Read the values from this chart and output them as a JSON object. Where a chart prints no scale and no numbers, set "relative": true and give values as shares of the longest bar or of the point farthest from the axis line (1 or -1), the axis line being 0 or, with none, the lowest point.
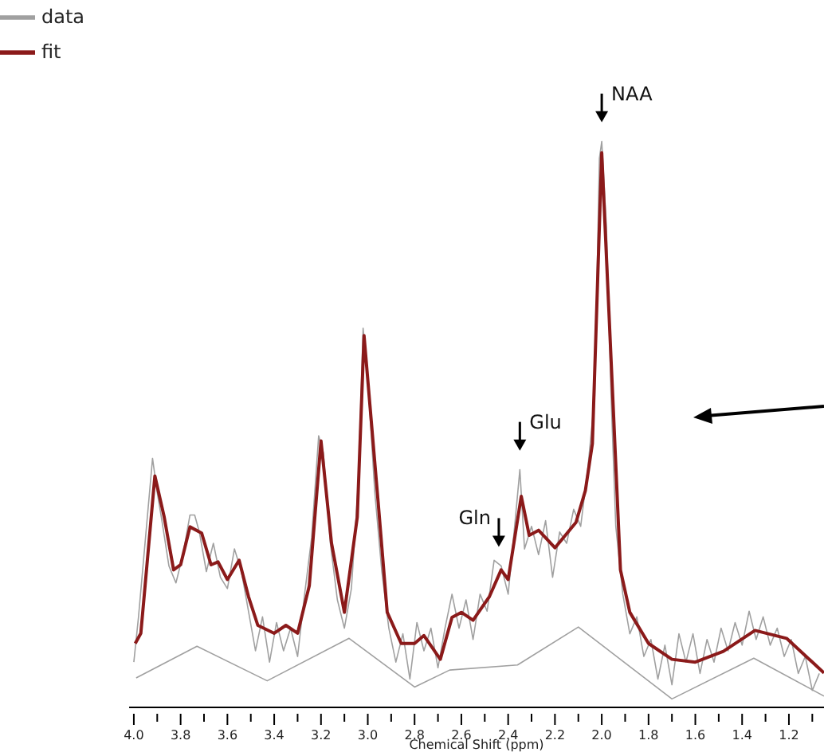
{
  "chart_data": {
    "type": "line",
    "relative": true,
    "xlabel": "Chemical Shift (ppm)",
    "legend": "top left",
    "marker": "none",
    "xlim": [
      4.02,
      1.05
    ],
    "xticks": [
      {
        "value": 4,
        "label": "4.0"
      },
      {
        "value": 3.9,
        "label": null
      },
      3.8,
      {
        "value": 3.7,
        "label": null
      },
      3.6,
      {
        "value": 3.5,
        "label": null
      },
      3.4,
      {
        "value": 3.3,
        "label": null
      },
      3.2,
      {
        "value": 3.1,
        "label": null
      },
      {
        "value": 3,
        "label": "3.0"
      },
      {
        "value": 2.9,
        "label": null
      },
      2.8,
      {
        "value": 2.7,
        "label": null
      },
      2.6,
      {
        "value": 2.5,
        "label": null
      },
      2.4,
      {
        "value": 2.3,
        "label": null
      },
      2.2,
      {
        "value": 2.1,
        "label": null
      },
      {
        "value": 2,
        "label": "2.0"
      },
      {
        "value": 1.9,
        "label": null
      },
      1.8,
      {
        "value": 1.7,
        "label": null
      },
      1.6,
      {
        "value": 1.5,
        "label": null
      },
      1.4,
      {
        "value": 1.3,
        "label": null
      },
      1.2,
      {
        "value": 1.1,
        "label": null
      }
    ],
    "series": [
      {
        "name": "data",
        "color": "#a0a0a0",
        "x": [
          4.0,
          3.98,
          3.95,
          3.92,
          3.9,
          3.88,
          3.85,
          3.82,
          3.79,
          3.76,
          3.74,
          3.72,
          3.69,
          3.66,
          3.63,
          3.6,
          3.57,
          3.54,
          3.51,
          3.48,
          3.45,
          3.42,
          3.39,
          3.36,
          3.33,
          3.3,
          3.27,
          3.24,
          3.21,
          3.19,
          3.16,
          3.13,
          3.1,
          3.07,
          3.04,
          3.02,
          3.0,
          2.97,
          2.94,
          2.91,
          2.88,
          2.85,
          2.82,
          2.79,
          2.76,
          2.73,
          2.7,
          2.67,
          2.64,
          2.61,
          2.58,
          2.55,
          2.52,
          2.49,
          2.46,
          2.43,
          2.4,
          2.37,
          2.35,
          2.33,
          2.3,
          2.27,
          2.24,
          2.21,
          2.18,
          2.15,
          2.12,
          2.09,
          2.06,
          2.03,
          2.01,
          2.0,
          1.98,
          1.96,
          1.94,
          1.91,
          1.88,
          1.85,
          1.82,
          1.79,
          1.76,
          1.73,
          1.7,
          1.67,
          1.64,
          1.61,
          1.58,
          1.55,
          1.52,
          1.49,
          1.46,
          1.43,
          1.4,
          1.37,
          1.34,
          1.31,
          1.28,
          1.25,
          1.22,
          1.19,
          1.16,
          1.13,
          1.1,
          1.07
        ],
        "values": [
          0.08,
          0.16,
          0.3,
          0.44,
          0.38,
          0.33,
          0.25,
          0.22,
          0.27,
          0.34,
          0.34,
          0.31,
          0.24,
          0.29,
          0.23,
          0.21,
          0.28,
          0.24,
          0.17,
          0.1,
          0.16,
          0.08,
          0.15,
          0.1,
          0.14,
          0.09,
          0.2,
          0.3,
          0.48,
          0.45,
          0.29,
          0.19,
          0.14,
          0.21,
          0.4,
          0.67,
          0.58,
          0.38,
          0.24,
          0.14,
          0.08,
          0.13,
          0.05,
          0.15,
          0.1,
          0.14,
          0.07,
          0.14,
          0.2,
          0.14,
          0.19,
          0.12,
          0.2,
          0.17,
          0.26,
          0.25,
          0.2,
          0.33,
          0.42,
          0.28,
          0.32,
          0.27,
          0.33,
          0.23,
          0.31,
          0.29,
          0.35,
          0.32,
          0.42,
          0.55,
          0.97,
          1.0,
          0.85,
          0.55,
          0.32,
          0.2,
          0.13,
          0.16,
          0.09,
          0.12,
          0.05,
          0.11,
          0.04,
          0.13,
          0.08,
          0.13,
          0.06,
          0.12,
          0.08,
          0.14,
          0.1,
          0.15,
          0.11,
          0.17,
          0.12,
          0.16,
          0.11,
          0.14,
          0.09,
          0.12,
          0.06,
          0.09,
          0.03,
          0.06
        ]
      },
      {
        "color": "#a0a0a0",
        "x": [
          3.99,
          3.73,
          3.43,
          3.08,
          2.8,
          2.65,
          2.36,
          2.1,
          1.7,
          1.35,
          1.05
        ],
        "values": [
          0.052,
          0.108,
          0.047,
          0.122,
          0.036,
          0.066,
          0.075,
          0.142,
          0.015,
          0.087,
          0.02
        ]
      },
      {
        "name": "fit",
        "color": "#8b1a1a",
        "x": [
          3.994,
          3.97,
          3.91,
          3.87,
          3.83,
          3.8,
          3.76,
          3.71,
          3.67,
          3.64,
          3.6,
          3.55,
          3.51,
          3.47,
          3.4,
          3.35,
          3.3,
          3.25,
          3.2,
          3.155,
          3.1,
          3.045,
          3.016,
          2.956,
          2.917,
          2.857,
          2.8,
          2.76,
          2.69,
          2.64,
          2.6,
          2.55,
          2.48,
          2.43,
          2.4,
          2.344,
          2.31,
          2.27,
          2.2,
          2.11,
          2.07,
          2.04,
          2.0,
          1.95,
          1.92,
          1.88,
          1.8,
          1.7,
          1.6,
          1.48,
          1.345,
          1.21,
          1.05
        ],
        "values": [
          0.113,
          0.131,
          0.409,
          0.336,
          0.243,
          0.252,
          0.319,
          0.308,
          0.252,
          0.257,
          0.226,
          0.26,
          0.196,
          0.145,
          0.131,
          0.145,
          0.131,
          0.215,
          0.471,
          0.29,
          0.168,
          0.336,
          0.657,
          0.364,
          0.168,
          0.113,
          0.113,
          0.127,
          0.085,
          0.159,
          0.168,
          0.154,
          0.196,
          0.243,
          0.226,
          0.373,
          0.304,
          0.313,
          0.282,
          0.327,
          0.383,
          0.466,
          0.98,
          0.522,
          0.243,
          0.168,
          0.113,
          0.085,
          0.08,
          0.099,
          0.136,
          0.122,
          0.061
        ]
      }
    ],
    "annotations": [
      {
        "text": "NAA",
        "x": 2.0,
        "y": 1.0
      },
      {
        "text": "Glu",
        "x": 2.35,
        "y": 0.42
      },
      {
        "text": "Gln",
        "x": 2.44,
        "y": 0.25
      }
    ]
  }
}
